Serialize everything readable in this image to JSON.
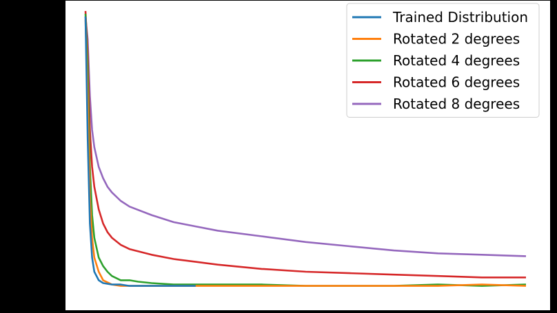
{
  "chart_data": {
    "type": "line",
    "title": "",
    "xlabel": "",
    "ylabel": "",
    "xlim": [
      0,
      1000
    ],
    "ylim": [
      0,
      1
    ],
    "grid": false,
    "legend_position": "top-right",
    "y_ticks": [
      0.03,
      0.23,
      0.43,
      0.63,
      0.83,
      1.0
    ],
    "series": [
      {
        "name": "Trained Distribution",
        "color": "#1f77b4",
        "x": [
          0,
          5,
          10,
          15,
          20,
          30,
          40,
          60,
          80,
          100,
          150,
          200,
          250
        ],
        "y": [
          0.98,
          0.55,
          0.25,
          0.13,
          0.08,
          0.05,
          0.04,
          0.035,
          0.035,
          0.03,
          0.03,
          0.03,
          0.03
        ]
      },
      {
        "name": "Rotated 2 degrees",
        "color": "#ff7f0e",
        "x": [
          0,
          5,
          10,
          15,
          20,
          30,
          40,
          60,
          80,
          100,
          150,
          200,
          300,
          400,
          500,
          600,
          700,
          800,
          900,
          1000
        ],
        "y": [
          0.97,
          0.7,
          0.35,
          0.2,
          0.13,
          0.08,
          0.05,
          0.035,
          0.03,
          0.03,
          0.03,
          0.03,
          0.03,
          0.03,
          0.03,
          0.03,
          0.03,
          0.03,
          0.035,
          0.03
        ]
      },
      {
        "name": "Rotated 4 degrees",
        "color": "#2ca02c",
        "x": [
          0,
          5,
          10,
          15,
          20,
          30,
          40,
          50,
          60,
          80,
          100,
          120,
          150,
          200,
          300,
          400,
          500,
          600,
          700,
          800,
          900,
          1000
        ],
        "y": [
          0.99,
          0.8,
          0.45,
          0.28,
          0.2,
          0.13,
          0.1,
          0.08,
          0.065,
          0.05,
          0.05,
          0.045,
          0.04,
          0.035,
          0.035,
          0.035,
          0.03,
          0.03,
          0.03,
          0.035,
          0.03,
          0.035
        ]
      },
      {
        "name": "Rotated 6 degrees",
        "color": "#d62728",
        "x": [
          0,
          5,
          10,
          15,
          20,
          30,
          40,
          50,
          60,
          80,
          100,
          150,
          200,
          250,
          300,
          400,
          500,
          600,
          700,
          800,
          900,
          1000
        ],
        "y": [
          1.0,
          0.85,
          0.58,
          0.45,
          0.38,
          0.3,
          0.25,
          0.22,
          0.2,
          0.175,
          0.16,
          0.14,
          0.125,
          0.115,
          0.105,
          0.09,
          0.08,
          0.075,
          0.07,
          0.065,
          0.06,
          0.06
        ]
      },
      {
        "name": "Rotated 8 degrees",
        "color": "#9467bd",
        "x": [
          0,
          5,
          10,
          15,
          20,
          30,
          40,
          50,
          60,
          80,
          100,
          150,
          200,
          250,
          300,
          400,
          500,
          600,
          700,
          800,
          900,
          1000
        ],
        "y": [
          0.98,
          0.9,
          0.7,
          0.58,
          0.52,
          0.45,
          0.41,
          0.38,
          0.36,
          0.33,
          0.31,
          0.28,
          0.255,
          0.24,
          0.225,
          0.205,
          0.185,
          0.17,
          0.155,
          0.145,
          0.14,
          0.135
        ]
      }
    ]
  }
}
